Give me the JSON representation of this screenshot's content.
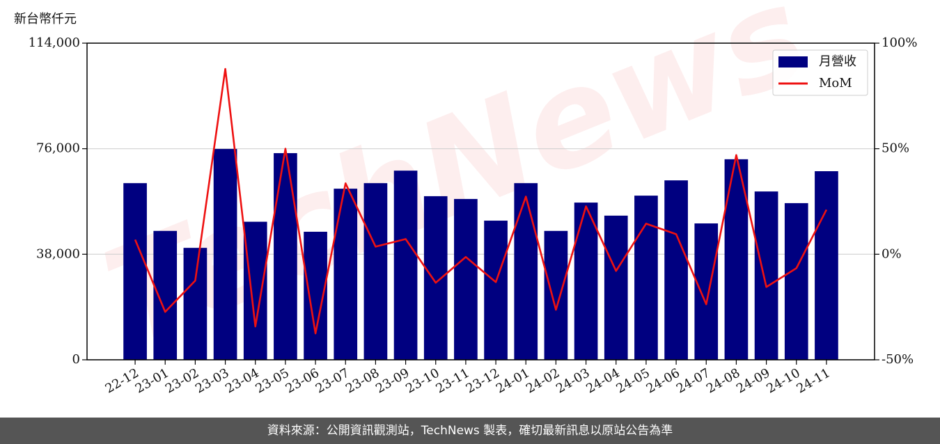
{
  "chart_data": {
    "type": "bar-line",
    "y_label": "新台幣仟元",
    "watermark": "TechNews",
    "footer": "資料來源：公開資訊觀測站，TechNews 製表，確切最新訊息以原站公告為準",
    "categories": [
      "22-12",
      "23-01",
      "23-02",
      "23-03",
      "23-04",
      "23-05",
      "23-06",
      "23-07",
      "23-08",
      "23-09",
      "23-10",
      "23-11",
      "23-12",
      "24-01",
      "24-02",
      "24-03",
      "24-04",
      "24-05",
      "24-06",
      "24-07",
      "24-08",
      "24-09",
      "24-10",
      "24-11"
    ],
    "series": [
      {
        "name": "月營收",
        "type": "bar",
        "axis": "y",
        "color": "#000080",
        "values": [
          63600,
          46400,
          40300,
          75900,
          49700,
          74400,
          46100,
          61600,
          63600,
          68100,
          58900,
          57900,
          50100,
          63600,
          46400,
          56600,
          51900,
          59100,
          64600,
          49100,
          72200,
          60600,
          56400,
          67900
        ]
      },
      {
        "name": "MoM",
        "type": "line",
        "axis": "y2",
        "color": "#ee1111",
        "values": [
          6.9,
          -27.3,
          -12.5,
          87.8,
          -34.2,
          50,
          -37.5,
          33.6,
          3.6,
          7.2,
          -13.5,
          -1.3,
          -13.2,
          27.3,
          -26.3,
          22.7,
          -7.9,
          14.5,
          9.5,
          -23.7,
          47,
          -15.5,
          -6.6,
          21.1
        ]
      }
    ],
    "ylim": [
      0,
      114000
    ],
    "yticks": [
      0,
      {
        "value": 38000,
        "label": "38,000"
      },
      {
        "value": 76000,
        "label": "76,000"
      },
      {
        "value": 114000,
        "label": "114,000"
      }
    ],
    "y2lim": [
      -50,
      100
    ],
    "y2ticks": [
      {
        "value": -50,
        "label": "-50%"
      },
      {
        "value": 0,
        "label": "0%"
      },
      {
        "value": 50,
        "label": "50%"
      },
      {
        "value": 100,
        "label": "100%"
      }
    ],
    "grid": true,
    "legend": "upper right"
  }
}
